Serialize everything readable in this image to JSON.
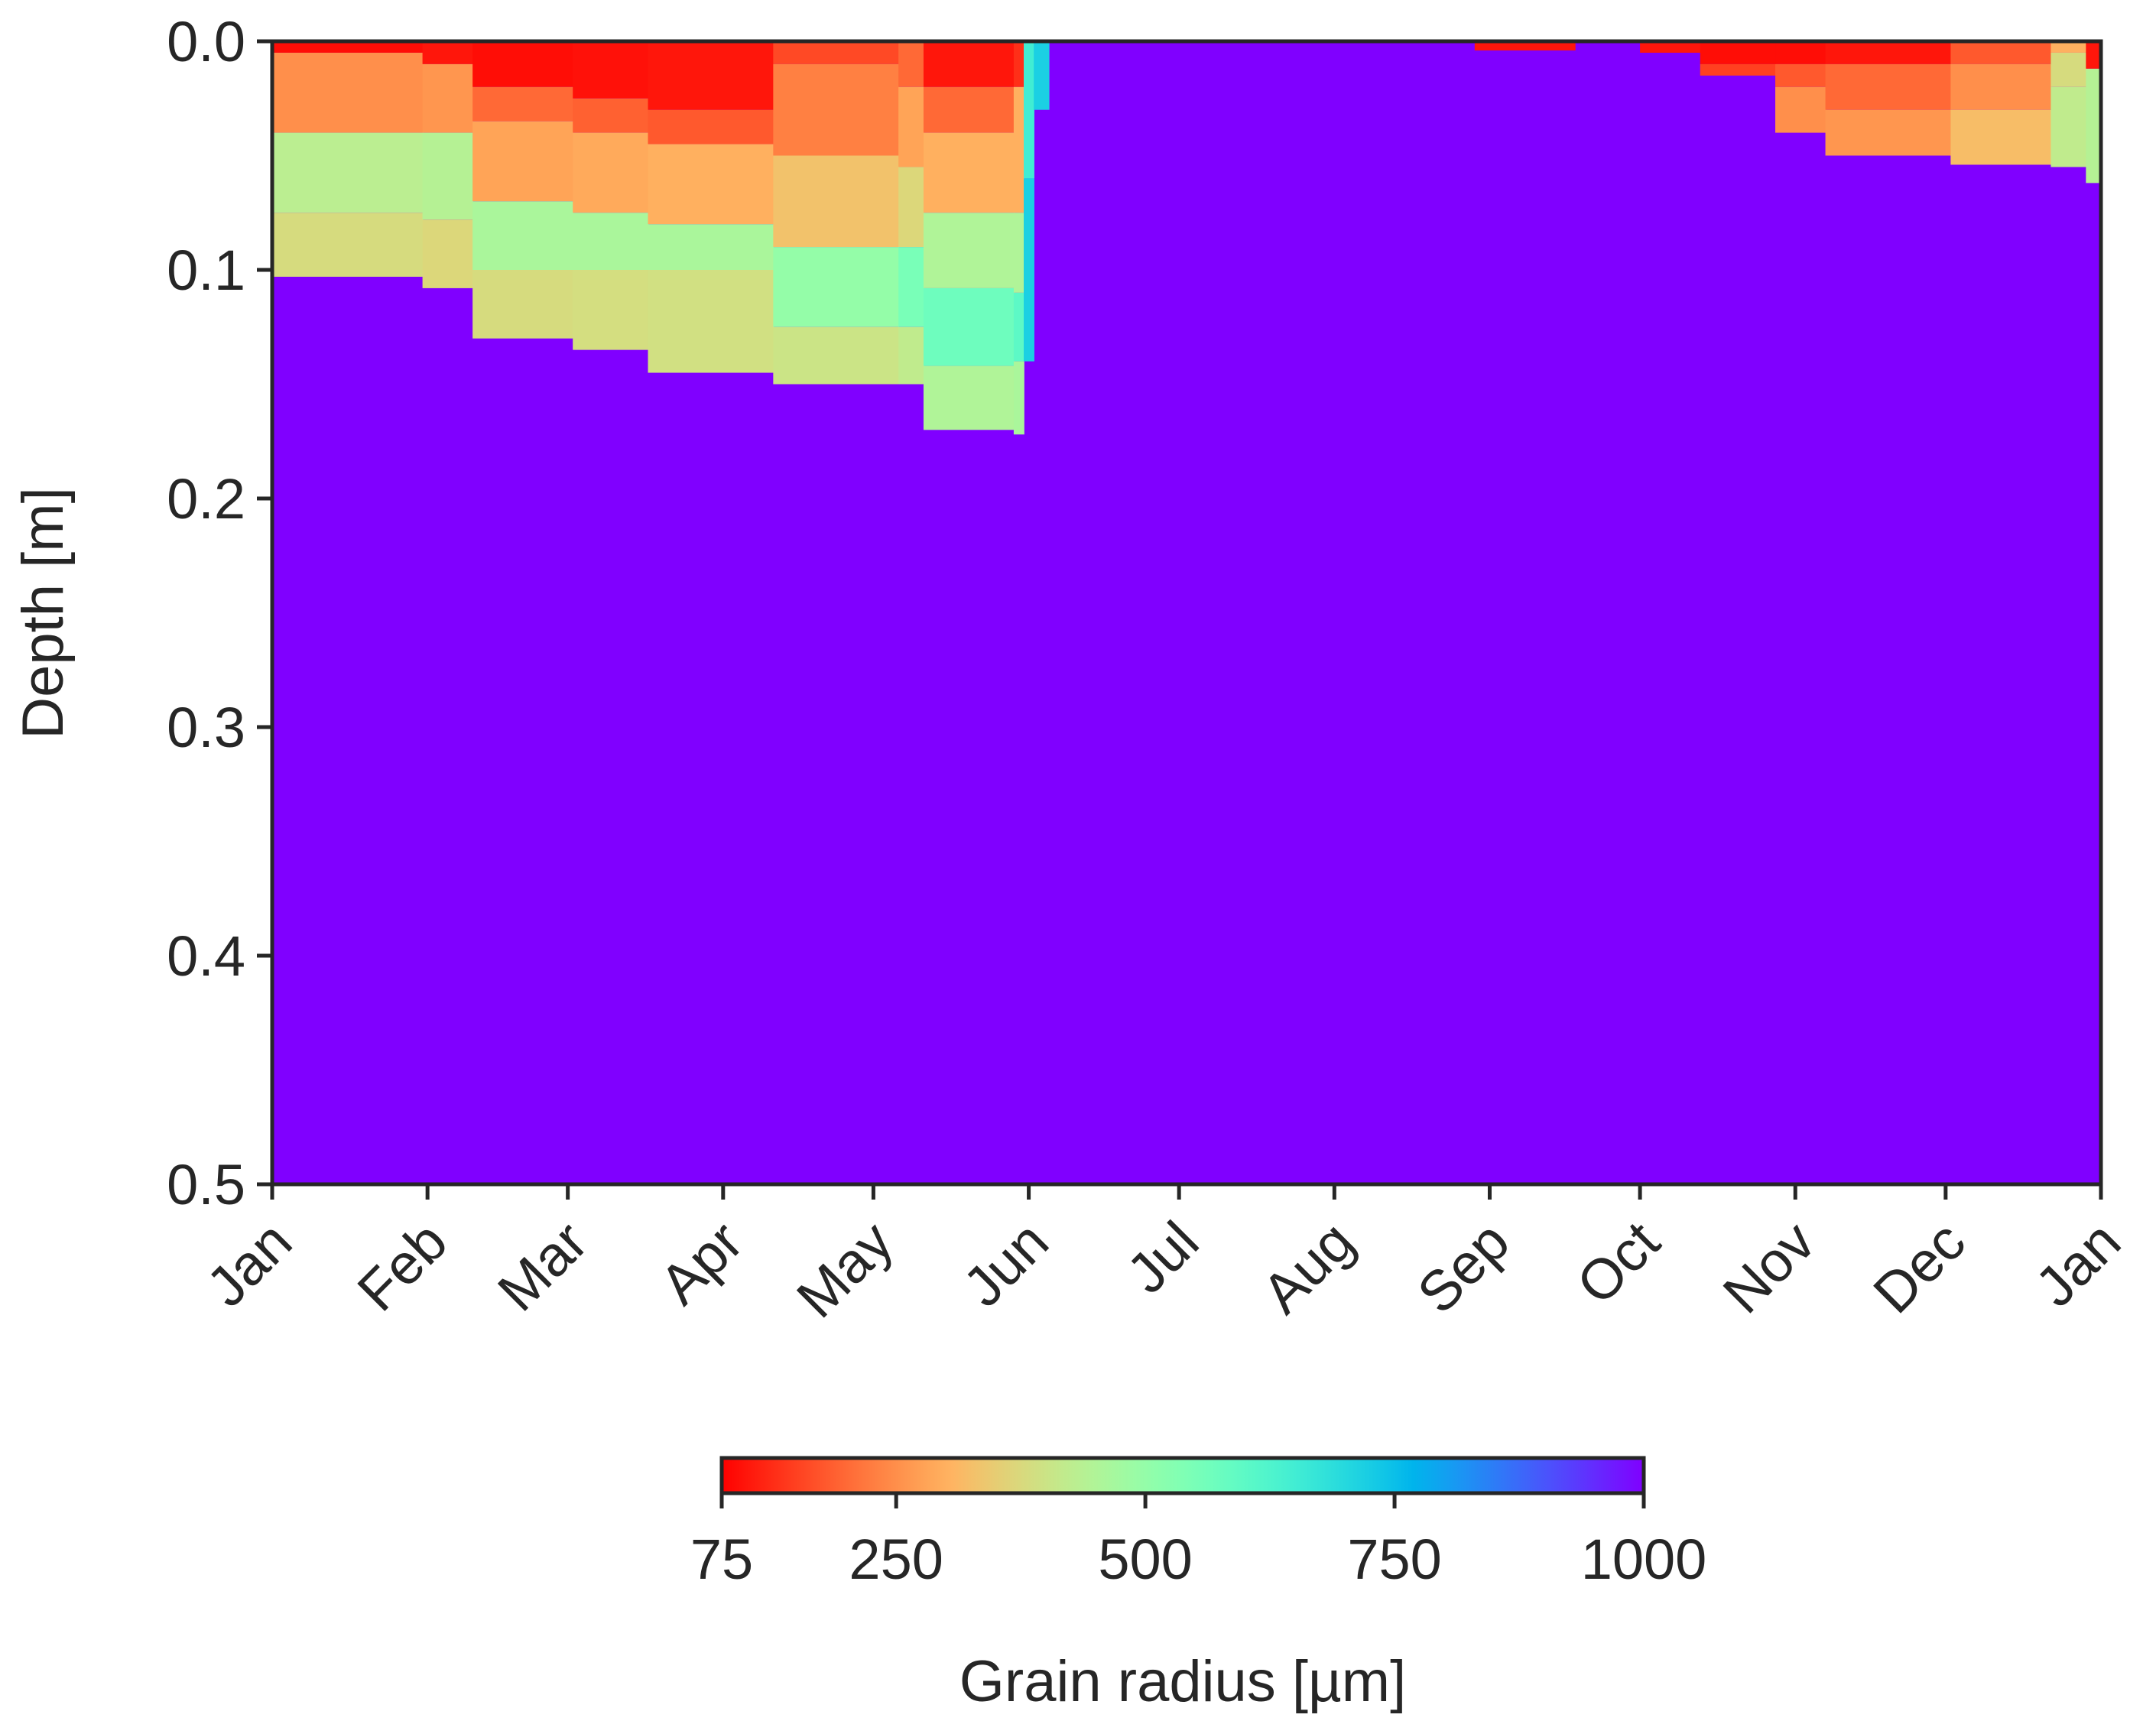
{
  "chart_data": {
    "type": "heatmap",
    "title": "",
    "xlabel": "",
    "ylabel": "Depth [m]",
    "x_ticks": [
      "Jan",
      "Feb",
      "Mar",
      "Apr",
      "May",
      "Jun",
      "Jul",
      "Aug",
      "Sep",
      "Oct",
      "Nov",
      "Dec",
      "Jan"
    ],
    "y_ticks": [
      "0.0",
      "0.1",
      "0.2",
      "0.3",
      "0.4",
      "0.5"
    ],
    "ylim": [
      0.5,
      0.0
    ],
    "colorbar": {
      "label": "Grain radius [µm]",
      "ticks": [
        "75",
        "250",
        "500",
        "750",
        "1000"
      ],
      "range": [
        75,
        1000
      ],
      "colormap": "rainbow (reversed)",
      "orientation": "horizontal",
      "placement": "bottom"
    },
    "background_value": 1000,
    "profiles_note_units": "day of year; depth in m; radius in µm",
    "profiles": [
      {
        "day": 0,
        "layers": [
          [
            0,
            0.005,
            90
          ],
          [
            0.005,
            0.04,
            250
          ],
          [
            0.04,
            0.075,
            430
          ],
          [
            0.075,
            0.103,
            380
          ]
        ]
      },
      {
        "day": 30,
        "layers": [
          [
            0,
            0.01,
            100
          ],
          [
            0.01,
            0.04,
            260
          ],
          [
            0.04,
            0.078,
            440
          ],
          [
            0.078,
            0.108,
            370
          ]
        ]
      },
      {
        "day": 40,
        "layers": [
          [
            0,
            0.02,
            90
          ],
          [
            0.02,
            0.035,
            200
          ],
          [
            0.035,
            0.07,
            280
          ],
          [
            0.07,
            0.1,
            460
          ],
          [
            0.1,
            0.13,
            380
          ]
        ]
      },
      {
        "day": 60,
        "layers": [
          [
            0,
            0.025,
            95
          ],
          [
            0.025,
            0.04,
            190
          ],
          [
            0.04,
            0.075,
            290
          ],
          [
            0.075,
            0.1,
            460
          ],
          [
            0.1,
            0.135,
            385
          ]
        ]
      },
      {
        "day": 75,
        "layers": [
          [
            0,
            0.03,
            100
          ],
          [
            0.03,
            0.045,
            180
          ],
          [
            0.045,
            0.08,
            300
          ],
          [
            0.08,
            0.1,
            460
          ],
          [
            0.1,
            0.145,
            390
          ]
        ]
      },
      {
        "day": 100,
        "layers": [
          [
            0,
            0.01,
            160
          ],
          [
            0.01,
            0.05,
            230
          ],
          [
            0.05,
            0.09,
            330
          ],
          [
            0.09,
            0.125,
            500
          ],
          [
            0.125,
            0.15,
            400
          ]
        ]
      },
      {
        "day": 125,
        "layers": [
          [
            0,
            0.02,
            200
          ],
          [
            0.02,
            0.055,
            280
          ],
          [
            0.055,
            0.09,
            370
          ],
          [
            0.09,
            0.125,
            550
          ],
          [
            0.125,
            0.15,
            420
          ]
        ]
      },
      {
        "day": 130,
        "layers": [
          [
            0,
            0.02,
            100
          ],
          [
            0.02,
            0.04,
            200
          ],
          [
            0.04,
            0.075,
            300
          ],
          [
            0.075,
            0.108,
            450
          ],
          [
            0.108,
            0.142,
            570
          ],
          [
            0.142,
            0.17,
            450
          ]
        ]
      },
      {
        "day": 148,
        "layers": [
          [
            0,
            0.02,
            130
          ],
          [
            0.02,
            0.075,
            300
          ],
          [
            0.075,
            0.11,
            450
          ],
          [
            0.11,
            0.14,
            600
          ],
          [
            0.14,
            0.172,
            460
          ]
        ]
      },
      {
        "day": 150,
        "layers": [
          [
            0,
            0.06,
            650
          ],
          [
            0.06,
            0.14,
            720
          ]
        ]
      },
      {
        "day": 152,
        "layers": [
          [
            0,
            0.03,
            720
          ]
        ]
      },
      {
        "day": 155,
        "layers": []
      },
      {
        "day": 240,
        "layers": [
          [
            0,
            0.004,
            100
          ]
        ]
      },
      {
        "day": 260,
        "layers": []
      },
      {
        "day": 273,
        "layers": [
          [
            0,
            0.005,
            100
          ]
        ]
      },
      {
        "day": 285,
        "layers": [
          [
            0,
            0.01,
            90
          ],
          [
            0.01,
            0.015,
            150
          ]
        ]
      },
      {
        "day": 300,
        "layers": [
          [
            0,
            0.01,
            90
          ],
          [
            0.01,
            0.02,
            180
          ],
          [
            0.02,
            0.04,
            250
          ]
        ]
      },
      {
        "day": 310,
        "layers": [
          [
            0,
            0.01,
            100
          ],
          [
            0.01,
            0.03,
            200
          ],
          [
            0.03,
            0.05,
            260
          ]
        ]
      },
      {
        "day": 335,
        "layers": [
          [
            0,
            0.01,
            180
          ],
          [
            0.01,
            0.03,
            250
          ],
          [
            0.03,
            0.054,
            320
          ]
        ]
      },
      {
        "day": 355,
        "layers": [
          [
            0,
            0.005,
            300
          ],
          [
            0.005,
            0.02,
            380
          ],
          [
            0.02,
            0.055,
            420
          ]
        ]
      },
      {
        "day": 362,
        "layers": [
          [
            0,
            0.012,
            100
          ],
          [
            0.012,
            0.062,
            440
          ]
        ]
      }
    ]
  }
}
